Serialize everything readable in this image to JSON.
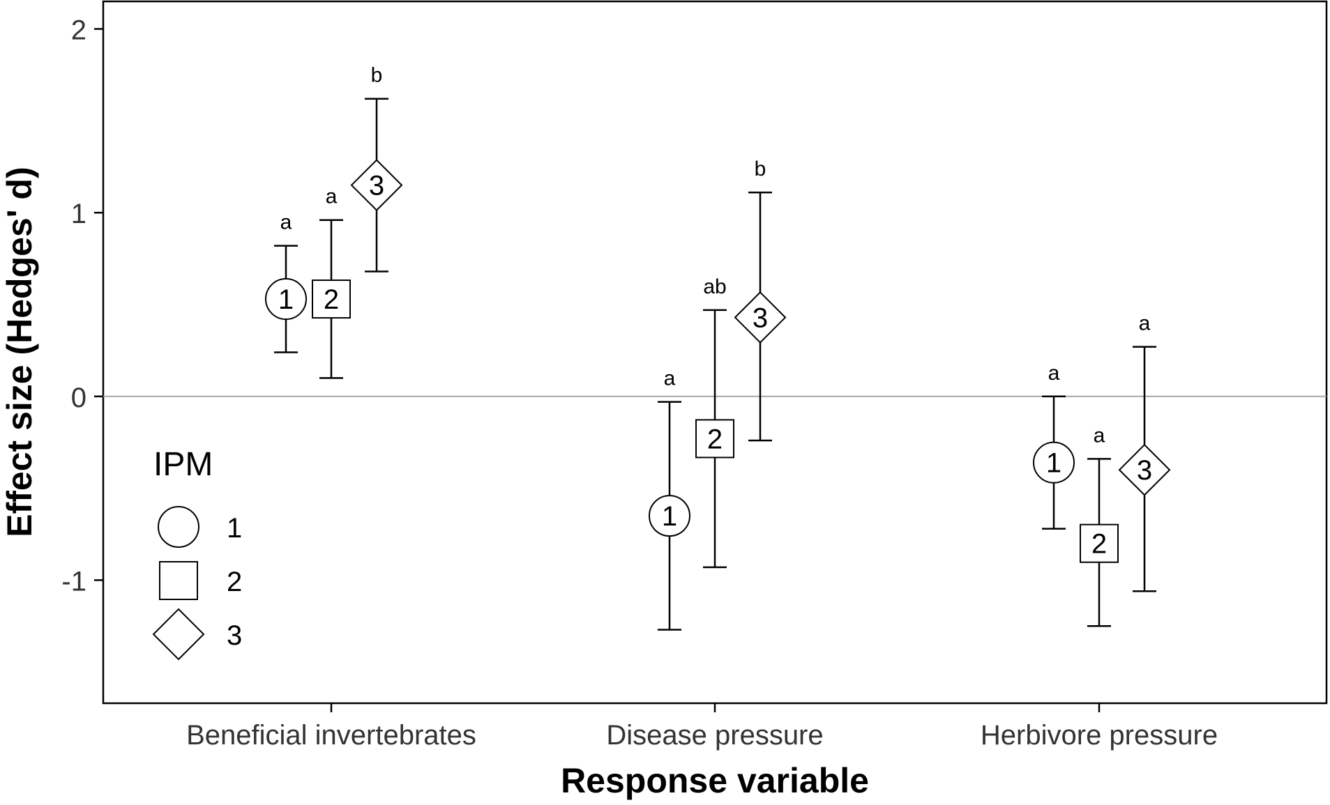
{
  "chart_data": {
    "type": "scatter",
    "xlabel": "Response variable",
    "ylabel": "Effect size (Hedges' d)",
    "categories": [
      "Beneficial invertebrates",
      "Disease pressure",
      "Herbivore pressure"
    ],
    "ylim": [
      -1.67,
      2.15
    ],
    "yticks": [
      {
        "value": 2,
        "label": "2"
      },
      {
        "value": 1,
        "label": "1"
      },
      {
        "value": 0,
        "label": "0"
      },
      {
        "value": -1,
        "label": "-1"
      }
    ],
    "reference_line": {
      "y": 0,
      "color": "#a6a6a6"
    },
    "grid": false,
    "legend": {
      "title": "IPM",
      "position": "bottom-left inside",
      "items": [
        {
          "label": "1",
          "shape": "circle"
        },
        {
          "label": "2",
          "shape": "square"
        },
        {
          "label": "3",
          "shape": "diamond"
        }
      ]
    },
    "series": [
      {
        "name": "1",
        "shape": "circle",
        "marker_text": "1",
        "points": [
          {
            "category": "Beneficial invertebrates",
            "y": 0.53,
            "lower": 0.24,
            "upper": 0.82,
            "sig": "a"
          },
          {
            "category": "Disease pressure",
            "y": -0.65,
            "lower": -1.27,
            "upper": -0.03,
            "sig": "a"
          },
          {
            "category": "Herbivore pressure",
            "y": -0.36,
            "lower": -0.72,
            "upper": 0.0,
            "sig": "a"
          }
        ]
      },
      {
        "name": "2",
        "shape": "square",
        "marker_text": "2",
        "points": [
          {
            "category": "Beneficial invertebrates",
            "y": 0.53,
            "lower": 0.1,
            "upper": 0.96,
            "sig": "a"
          },
          {
            "category": "Disease pressure",
            "y": -0.23,
            "lower": -0.93,
            "upper": 0.47,
            "sig": "ab"
          },
          {
            "category": "Herbivore pressure",
            "y": -0.8,
            "lower": -1.25,
            "upper": -0.34,
            "sig": "a"
          }
        ]
      },
      {
        "name": "3",
        "shape": "diamond",
        "marker_text": "3",
        "points": [
          {
            "category": "Beneficial invertebrates",
            "y": 1.15,
            "lower": 0.68,
            "upper": 1.62,
            "sig": "b"
          },
          {
            "category": "Disease pressure",
            "y": 0.43,
            "lower": -0.24,
            "upper": 1.11,
            "sig": "b"
          },
          {
            "category": "Herbivore pressure",
            "y": -0.4,
            "lower": -1.06,
            "upper": 0.27,
            "sig": "a"
          }
        ]
      }
    ]
  }
}
